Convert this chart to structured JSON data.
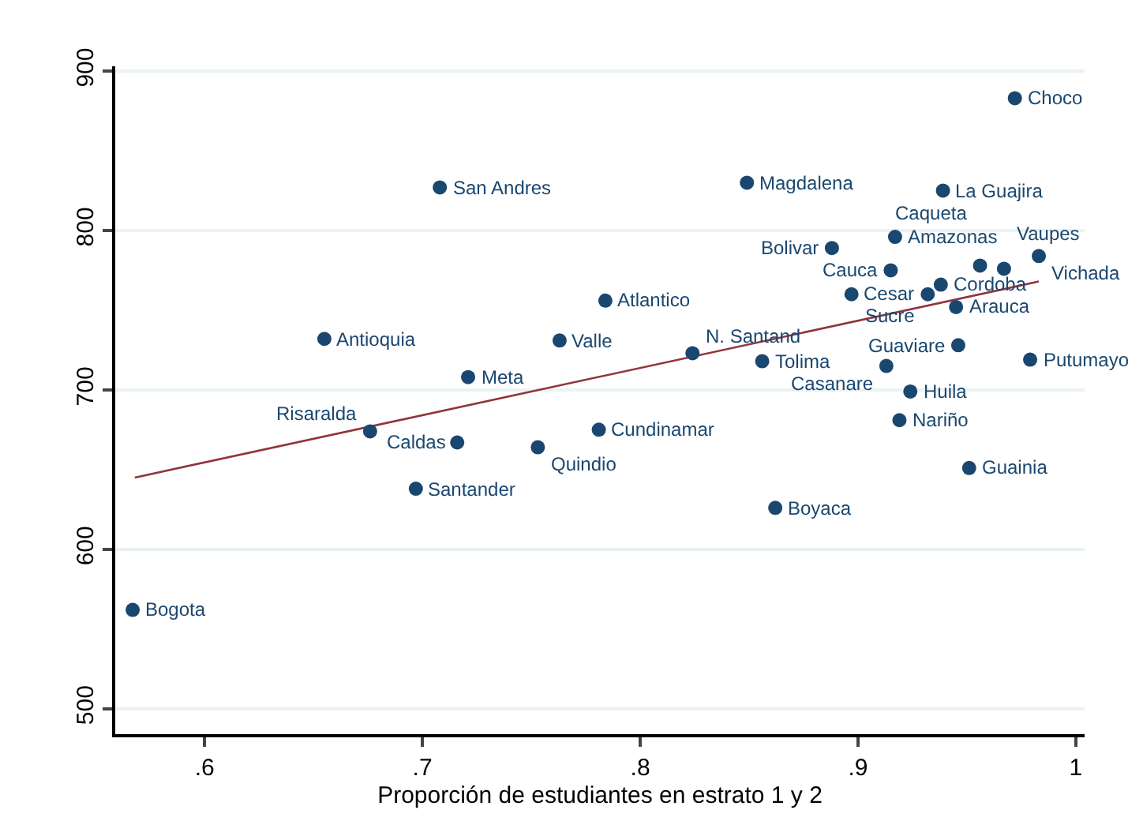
{
  "chart_data": {
    "type": "scatter",
    "xlabel": "Proporción de estudiantes en estrato 1 y 2",
    "xlim": [
      0.559,
      1.004
    ],
    "ylim": [
      484,
      903
    ],
    "xticks": [
      {
        "value": 0.6,
        "label": ".6"
      },
      {
        "value": 0.7,
        "label": ".7"
      },
      {
        "value": 0.8,
        "label": ".8"
      },
      {
        "value": 0.9,
        "label": ".9"
      },
      1
    ],
    "yticks": [
      500,
      600,
      700,
      800,
      900
    ],
    "grid": "y",
    "marker": "circle",
    "series": [
      {
        "type": "scatter",
        "color": "#1a476f",
        "x": [
          0.567,
          0.655,
          0.708,
          0.721,
          0.676,
          0.716,
          0.697,
          0.753,
          0.781,
          0.763,
          0.784,
          0.824,
          0.856,
          0.849,
          0.862,
          0.888,
          0.917,
          0.915,
          0.897,
          0.932,
          0.938,
          0.945,
          0.913,
          0.946,
          0.924,
          0.919,
          0.951,
          0.939,
          0.972,
          0.956,
          0.967,
          0.983,
          0.979
        ],
        "values": [
          562,
          732,
          827,
          708,
          674,
          667,
          638,
          664,
          675,
          731,
          756,
          723,
          718,
          830,
          626,
          789,
          796,
          775,
          760,
          760,
          766,
          752,
          715,
          728,
          699,
          681,
          651,
          825,
          883,
          778,
          776,
          784,
          719
        ]
      },
      {
        "type": "line",
        "color": "#90353b",
        "line_style": "solid",
        "marker": "none",
        "x": [
          0.568,
          0.983
        ],
        "values": [
          645,
          768
        ]
      }
    ],
    "annotations": [
      {
        "text": "Bogota",
        "x": 0.567,
        "y": 562
      },
      {
        "text": "Antioquia",
        "x": 0.655,
        "y": 732
      },
      {
        "text": "San Andres",
        "x": 0.708,
        "y": 827
      },
      {
        "text": "Meta",
        "x": 0.721,
        "y": 708
      },
      {
        "text": "Risaralda",
        "x": 0.676,
        "y": 674
      },
      {
        "text": "Caldas",
        "x": 0.716,
        "y": 667
      },
      {
        "text": "Santander",
        "x": 0.697,
        "y": 638
      },
      {
        "text": "Quindio",
        "x": 0.753,
        "y": 664
      },
      {
        "text": "Cundinamar",
        "x": 0.781,
        "y": 675
      },
      {
        "text": "Valle",
        "x": 0.763,
        "y": 731
      },
      {
        "text": "Atlantico",
        "x": 0.784,
        "y": 756
      },
      {
        "text": "N. Santand",
        "x": 0.824,
        "y": 723
      },
      {
        "text": "Tolima",
        "x": 0.856,
        "y": 718
      },
      {
        "text": "Magdalena",
        "x": 0.849,
        "y": 830
      },
      {
        "text": "Boyaca",
        "x": 0.862,
        "y": 626
      },
      {
        "text": "Bolivar",
        "x": 0.888,
        "y": 789
      },
      {
        "text": "Amazonas",
        "x": 0.917,
        "y": 796
      },
      {
        "text": "Cauca",
        "x": 0.915,
        "y": 775
      },
      {
        "text": "Cesar",
        "x": 0.897,
        "y": 760
      },
      {
        "text": "Sucre",
        "x": 0.932,
        "y": 760
      },
      {
        "text": "Cordoba",
        "x": 0.938,
        "y": 766
      },
      {
        "text": "Arauca",
        "x": 0.945,
        "y": 752
      },
      {
        "text": "Casanare",
        "x": 0.913,
        "y": 715
      },
      {
        "text": "Guaviare",
        "x": 0.946,
        "y": 728
      },
      {
        "text": "Huila",
        "x": 0.924,
        "y": 699
      },
      {
        "text": "Nariño",
        "x": 0.919,
        "y": 681
      },
      {
        "text": "Guainia",
        "x": 0.951,
        "y": 651
      },
      {
        "text": "La Guajira",
        "x": 0.939,
        "y": 825
      },
      {
        "text": "Choco",
        "x": 0.972,
        "y": 883
      },
      {
        "text": "Caqueta",
        "x": 0.956,
        "y": 778
      },
      {
        "text": "Vaupes",
        "x": 0.967,
        "y": 776
      },
      {
        "text": "Vichada",
        "x": 0.983,
        "y": 784
      },
      {
        "text": "Putumayo",
        "x": 0.979,
        "y": 719
      }
    ]
  }
}
